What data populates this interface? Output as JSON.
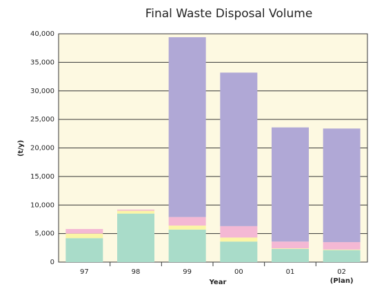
{
  "chart_data": {
    "type": "stacked_bar",
    "title": "Final Waste Disposal Volume",
    "x_label": "Year",
    "y_label": "(t/y)",
    "x_annotation": "(Plan)",
    "categories": [
      "97",
      "98",
      "99",
      "00",
      "01",
      "02"
    ],
    "series": [
      {
        "color": "#a9dcc9",
        "values": [
          4200,
          8500,
          5700,
          3600,
          2300,
          2100
        ]
      },
      {
        "color": "#fbf5a6",
        "values": [
          800,
          500,
          700,
          700,
          100,
          100
        ]
      },
      {
        "color": "#f4b8d4",
        "values": [
          800,
          200,
          1500,
          2000,
          1200,
          1300
        ]
      },
      {
        "color": "#b0a8d6",
        "values": [
          0,
          0,
          31500,
          26900,
          20000,
          19900
        ]
      }
    ],
    "ylim": [
      0,
      40000
    ],
    "yticks": [
      0,
      {
        "value": 5000,
        "label": "5,000"
      },
      {
        "value": 10000,
        "label": "10,000"
      },
      {
        "value": 15000,
        "label": "15,000"
      },
      {
        "value": 20000,
        "label": "20,000"
      },
      {
        "value": 25000,
        "label": "25,000"
      },
      {
        "value": 30000,
        "label": "30,000"
      },
      {
        "value": 35000,
        "label": "35,000"
      },
      {
        "value": 40000,
        "label": "40,000"
      }
    ],
    "grid": true,
    "background": "#fdf9e1"
  }
}
